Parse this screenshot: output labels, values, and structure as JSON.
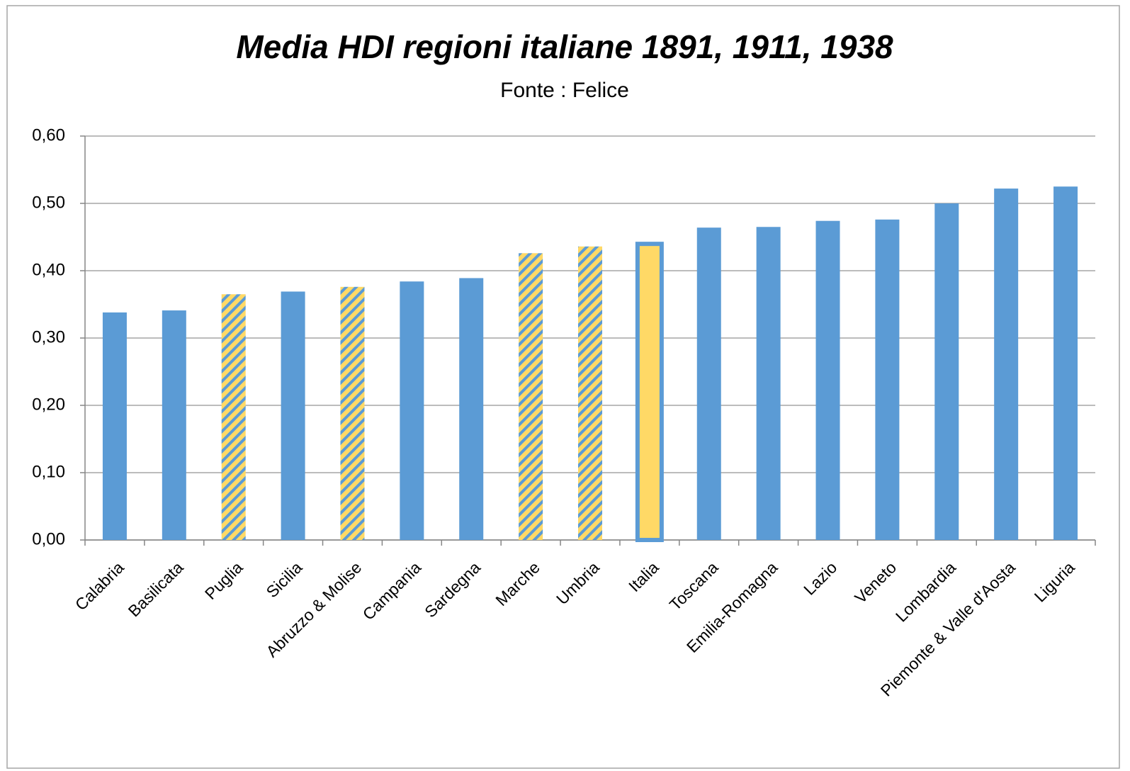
{
  "chart_data": {
    "type": "bar",
    "title": "Media HDI regioni italiane 1891, 1911, 1938",
    "subtitle": "Fonte : Felice",
    "categories": [
      "Calabria",
      "Basilicata",
      "Puglia",
      "Sicilia",
      "Abruzzo & Molise",
      "Campania",
      "Sardegna",
      "Marche",
      "Umbria",
      "Italia",
      "Toscana",
      "Emilia-Romagna",
      "Lazio",
      "Veneto",
      "Lombardia",
      "Piemonte & Valle d'Aosta",
      "Liguria"
    ],
    "values": [
      0.338,
      0.341,
      0.365,
      0.369,
      0.376,
      0.384,
      0.389,
      0.426,
      0.436,
      0.443,
      0.464,
      0.465,
      0.474,
      0.476,
      0.5,
      0.522,
      0.525
    ],
    "bar_styles": [
      "solid",
      "solid",
      "hatched",
      "solid",
      "hatched",
      "solid",
      "solid",
      "hatched",
      "hatched",
      "highlight",
      "solid",
      "solid",
      "solid",
      "solid",
      "solid",
      "solid",
      "solid"
    ],
    "color": "#5b9bd5",
    "highlight_color": "#ffd966",
    "ylim": [
      0,
      0.6
    ],
    "yticks": [
      {
        "value": 0,
        "label": "0,00"
      },
      {
        "value": 0.1,
        "label": "0,10"
      },
      {
        "value": 0.2,
        "label": "0,20"
      },
      {
        "value": 0.3,
        "label": "0,30"
      },
      {
        "value": 0.4,
        "label": "0,40"
      },
      {
        "value": 0.5,
        "label": "0,50"
      },
      {
        "value": 0.6,
        "label": "0,60"
      }
    ],
    "grid": true
  }
}
